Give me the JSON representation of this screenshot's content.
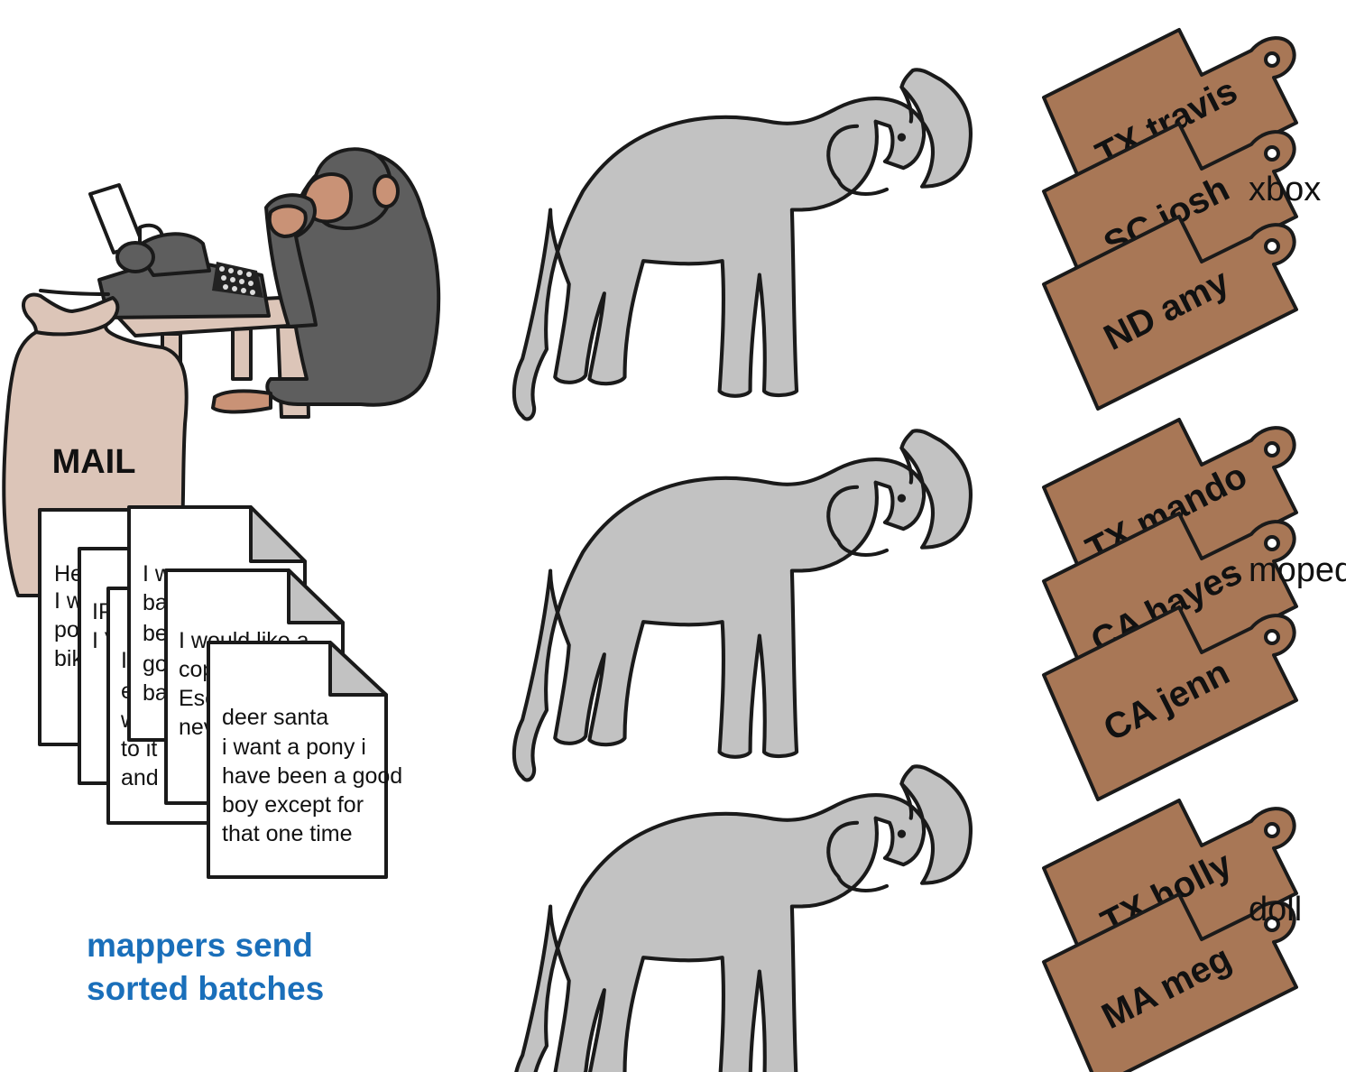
{
  "mail_bag": {
    "label": "MAIL"
  },
  "letters": [
    {
      "lines": [
        "He",
        "I w",
        "po",
        "bik"
      ]
    },
    {
      "lines": [
        "IP",
        "I V"
      ]
    },
    {
      "lines": [
        "I",
        "e",
        "w",
        "to it",
        "and"
      ]
    },
    {
      "lines": [
        "I w",
        "ba",
        "be",
        "go",
        "ba"
      ]
    },
    {
      "lines": [
        "I would like a",
        "cop",
        "Esc",
        "nev"
      ]
    },
    {
      "lines": [
        "deer santa",
        "i want a pony i",
        "have been a good",
        "boy except for",
        "that one time"
      ]
    }
  ],
  "caption": {
    "line1": "mappers send",
    "line2": "sorted batches"
  },
  "groups": [
    {
      "gift": "xbox",
      "tags": [
        "TX travis",
        "SC josh",
        "ND amy"
      ]
    },
    {
      "gift": "moped",
      "tags": [
        "TX mando",
        "CA hayes",
        "CA jenn"
      ]
    },
    {
      "gift": "doll",
      "tags": [
        "TX holly",
        "MA meg"
      ]
    }
  ],
  "colors": {
    "tag": "#a87756",
    "elephant": "#c2c2c2",
    "bag": "#dcc5b8",
    "monkey": "#5e5e5e",
    "monkey_face": "#c99276",
    "caption": "#1a6fba"
  }
}
